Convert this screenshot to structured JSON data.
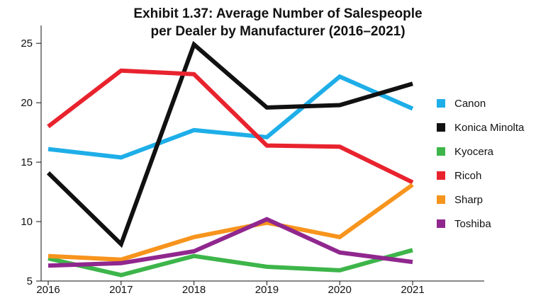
{
  "chart_data": {
    "type": "line",
    "title_lines": [
      "Exhibit 1.37: Average Number of Salespeople",
      "per Dealer by Manufacturer (2016–2021)"
    ],
    "xlabel": "",
    "ylabel": "",
    "x": [
      "2016",
      "2017",
      "2018",
      "2019",
      "2020",
      "2021"
    ],
    "y_ticks": [
      "5",
      "10",
      "15",
      "20",
      "25"
    ],
    "ylim": [
      5,
      26.5
    ],
    "grid": false,
    "legend_position": "right",
    "series": [
      {
        "name": "Canon",
        "color": "#1EAEE8",
        "values": [
          16.1,
          15.4,
          17.7,
          17.1,
          22.2,
          19.5
        ]
      },
      {
        "name": "Konica Minolta",
        "color": "#111111",
        "values": [
          14.1,
          8.1,
          24.9,
          19.6,
          19.8,
          21.6
        ]
      },
      {
        "name": "Kyocera",
        "color": "#3DB54A",
        "values": [
          6.9,
          5.5,
          7.1,
          6.2,
          5.9,
          7.6
        ]
      },
      {
        "name": "Ricoh",
        "color": "#E8232E",
        "values": [
          18.0,
          22.7,
          22.4,
          16.4,
          16.3,
          13.3
        ]
      },
      {
        "name": "Sharp",
        "color": "#F7941D",
        "values": [
          7.1,
          6.8,
          8.7,
          9.9,
          8.7,
          13.1
        ]
      },
      {
        "name": "Toshiba",
        "color": "#90278E",
        "values": [
          6.3,
          6.5,
          7.5,
          10.2,
          7.4,
          6.6
        ]
      }
    ]
  }
}
